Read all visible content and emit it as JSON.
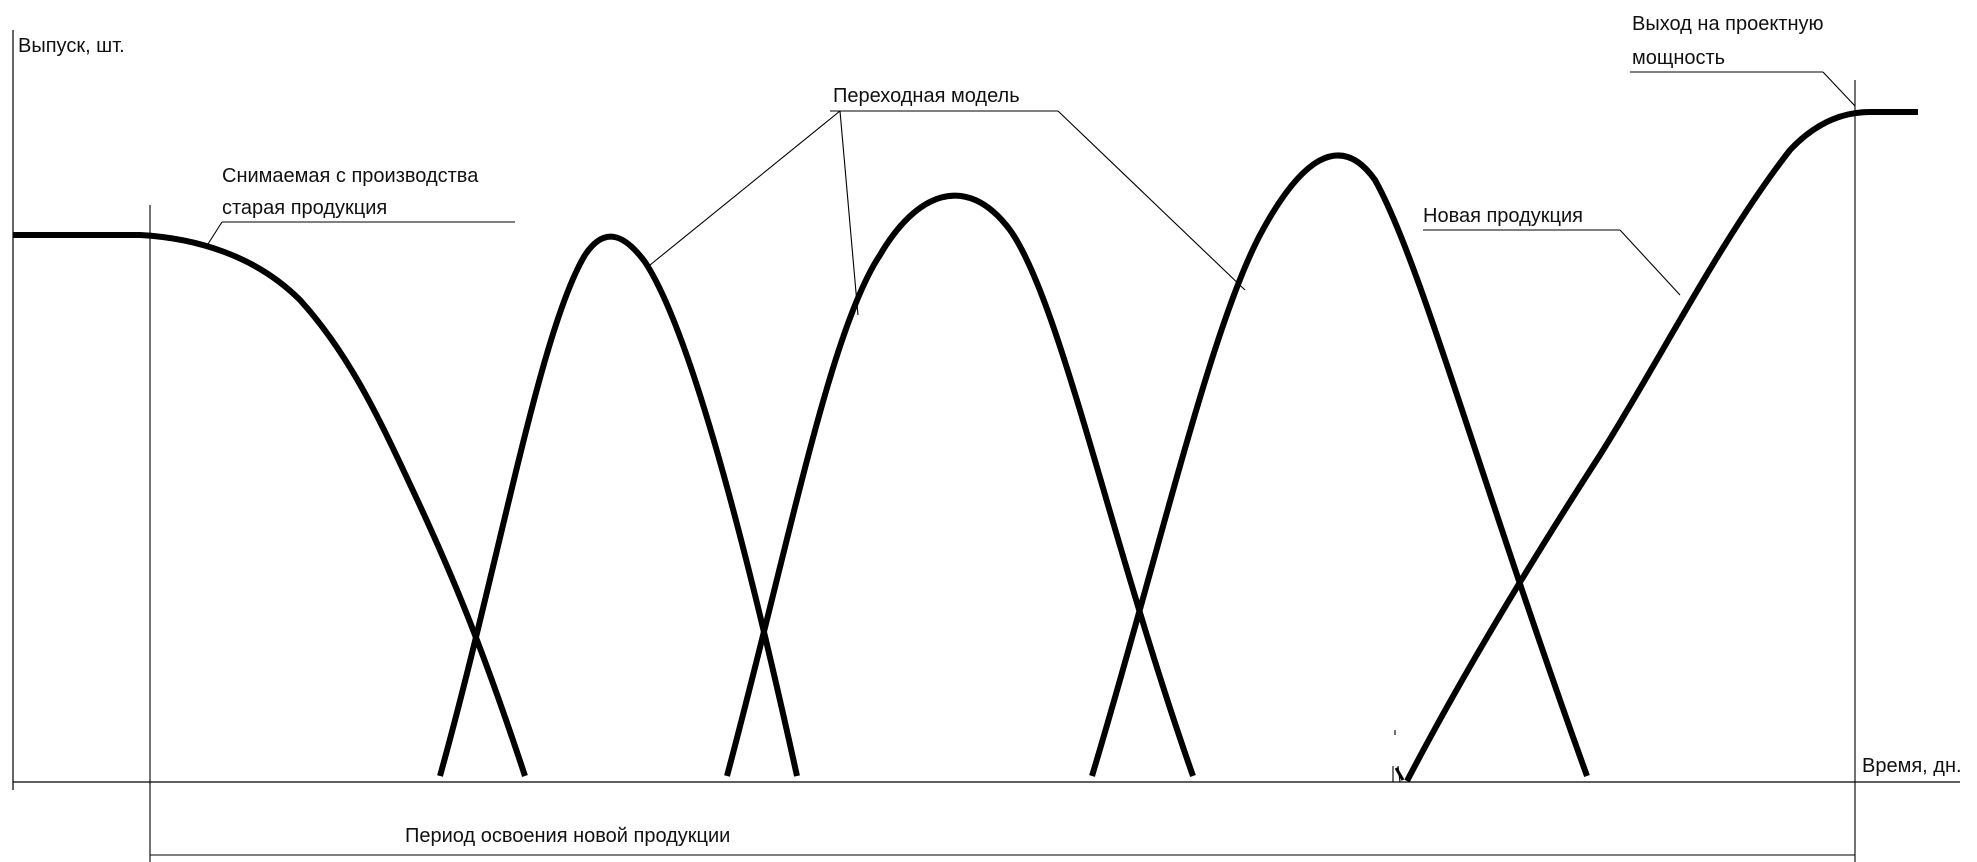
{
  "axes": {
    "y_label": "Выпуск, шт.",
    "x_label": "Время, дн."
  },
  "annotations": {
    "old_product": [
      "Снимаемая с производства",
      "старая продукция"
    ],
    "transitional_model": "Переходная модель",
    "new_product": "Новая продукция",
    "design_capacity": [
      "Выход на проектную",
      "мощность"
    ],
    "mastering_period": "Период освоения новой продукции"
  },
  "colors": {
    "background": "#ffffff",
    "stroke": "#000000"
  }
}
